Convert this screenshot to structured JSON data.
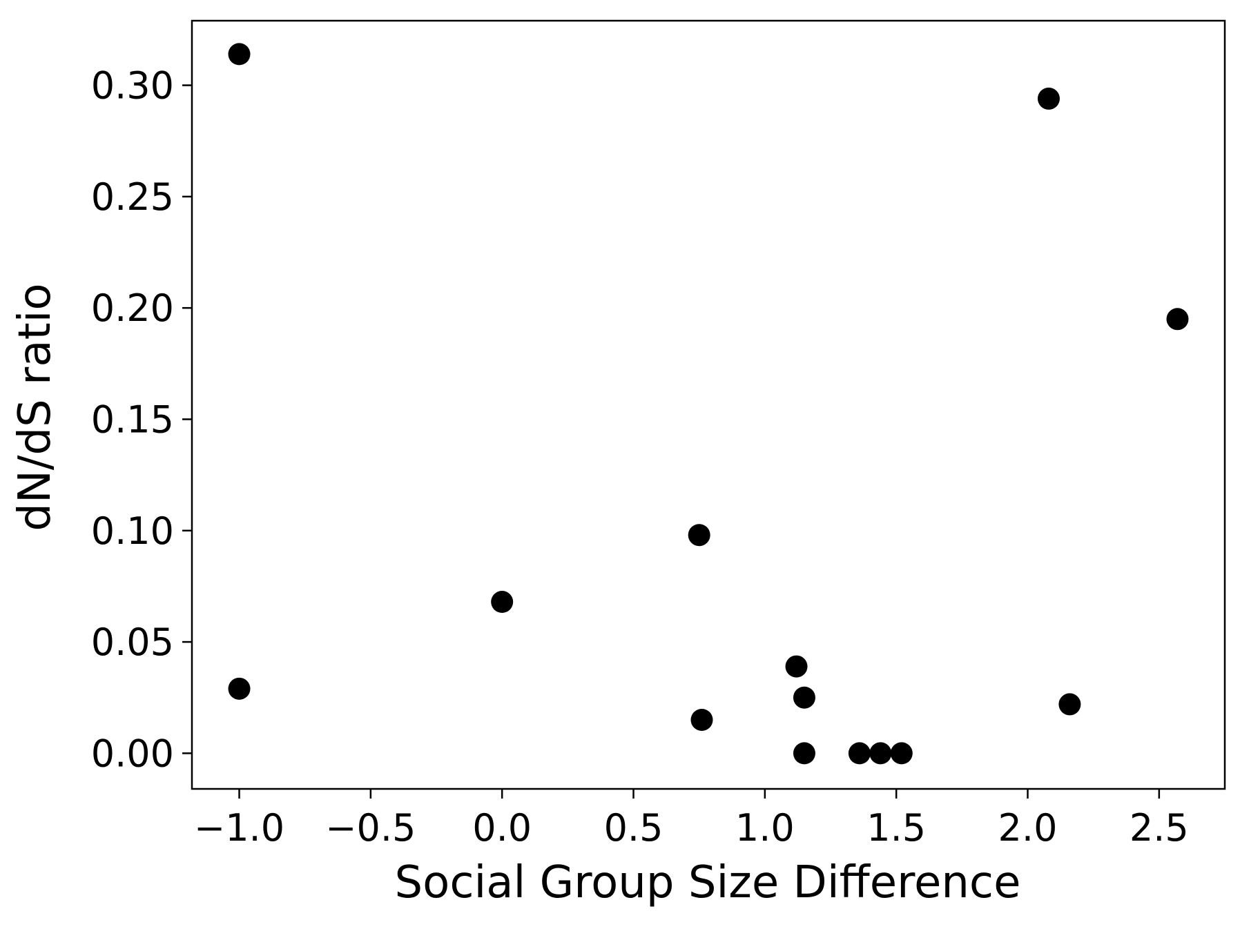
{
  "chart_data": {
    "type": "scatter",
    "title": "",
    "xlabel": "Social Group Size Difference",
    "ylabel": "dN/dS ratio",
    "xlim": [
      -1.18,
      2.75
    ],
    "ylim": [
      -0.016,
      0.329
    ],
    "xticks": [
      -1.0,
      -0.5,
      0.0,
      0.5,
      1.0,
      1.5,
      2.0,
      2.5
    ],
    "xtick_labels": [
      "−1.0",
      "−0.5",
      "0.0",
      "0.5",
      "1.0",
      "1.5",
      "2.0",
      "2.5"
    ],
    "yticks": [
      0.0,
      0.05,
      0.1,
      0.15,
      0.2,
      0.25,
      0.3
    ],
    "ytick_labels": [
      "0.00",
      "0.05",
      "0.10",
      "0.15",
      "0.20",
      "0.25",
      "0.30"
    ],
    "grid": false,
    "marker_color": "#000000",
    "points": [
      {
        "x": -1.0,
        "y": 0.314
      },
      {
        "x": -1.0,
        "y": 0.029
      },
      {
        "x": 0.0,
        "y": 0.068
      },
      {
        "x": 0.75,
        "y": 0.098
      },
      {
        "x": 0.76,
        "y": 0.015
      },
      {
        "x": 1.12,
        "y": 0.039
      },
      {
        "x": 1.15,
        "y": 0.025
      },
      {
        "x": 1.15,
        "y": 0.0
      },
      {
        "x": 1.36,
        "y": 0.0
      },
      {
        "x": 1.44,
        "y": 0.0
      },
      {
        "x": 1.52,
        "y": 0.0
      },
      {
        "x": 2.08,
        "y": 0.294
      },
      {
        "x": 2.16,
        "y": 0.022
      },
      {
        "x": 2.57,
        "y": 0.195
      }
    ]
  }
}
